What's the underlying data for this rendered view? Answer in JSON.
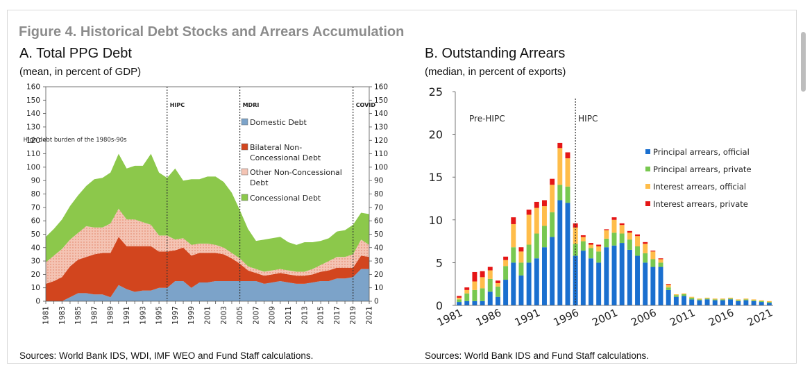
{
  "figure_title": "Figure 4. Historical Debt Stocks and Arrears Accumulation",
  "panel_a": {
    "title": "A. Total PPG Debt",
    "subtitle": "(mean, in percent of GDP)",
    "source": "Sources: World Bank IDS, WDI, IMF WEO and Fund Staff calculations."
  },
  "panel_b": {
    "title": "B. Outstanding Arrears",
    "subtitle": "(median, in percent of exports)",
    "source": "Sources: World Bank IDS and Fund Staff calculations."
  },
  "chart_data": [
    {
      "type": "area",
      "stacked": true,
      "title": "A. Total PPG Debt",
      "ylabel": "(mean, in percent of GDP)",
      "x": [
        1981,
        1982,
        1983,
        1984,
        1985,
        1986,
        1987,
        1988,
        1989,
        1990,
        1991,
        1992,
        1993,
        1994,
        1995,
        1996,
        1997,
        1998,
        1999,
        2000,
        2001,
        2002,
        2003,
        2004,
        2005,
        2006,
        2007,
        2008,
        2009,
        2010,
        2011,
        2012,
        2013,
        2014,
        2015,
        2016,
        2017,
        2018,
        2019,
        2020,
        2021
      ],
      "x_tick_labels": [
        "1981",
        "1983",
        "1985",
        "1987",
        "1989",
        "1991",
        "1993",
        "1995",
        "1997",
        "1999",
        "2001",
        "2003",
        "2005",
        "2007",
        "2009",
        "2011",
        "2013",
        "2015",
        "2017",
        "2019",
        "2021"
      ],
      "ylim": [
        0,
        160
      ],
      "y_ticks": [
        "0",
        "10",
        "20",
        "30",
        "40",
        "50",
        "60",
        "70",
        "80",
        "90",
        "100",
        "110",
        "120",
        "130",
        "140",
        "150",
        "160"
      ],
      "grid": false,
      "legend_position": "right",
      "series": [
        {
          "name": "Domestic Debt",
          "color": "#7ca3c9",
          "values": [
            0,
            0,
            0,
            3,
            6,
            6,
            5,
            5,
            3,
            12,
            9,
            7,
            8,
            8,
            10,
            10,
            15,
            15,
            10,
            14,
            14,
            15,
            15,
            15,
            15,
            15,
            15,
            13,
            14,
            15,
            14,
            13,
            13,
            14,
            15,
            15,
            17,
            17,
            18,
            24,
            24
          ]
        },
        {
          "name": "Bilateral Non-Concessional Debt",
          "color": "#d2451e",
          "values": [
            13,
            15,
            18,
            23,
            25,
            27,
            30,
            31,
            33,
            36,
            32,
            34,
            33,
            33,
            27,
            27,
            23,
            25,
            24,
            22,
            22,
            21,
            20,
            17,
            13,
            8,
            6,
            6,
            6,
            6,
            6,
            6,
            6,
            6,
            7,
            8,
            8,
            8,
            7,
            10,
            9
          ]
        },
        {
          "name": "Other Non-Concessional Debt",
          "color": "#f4c4b4",
          "values": [
            16,
            19,
            21,
            20,
            20,
            23,
            20,
            19,
            22,
            21,
            20,
            20,
            18,
            16,
            12,
            12,
            8,
            7,
            8,
            7,
            7,
            6,
            5,
            4,
            4,
            3,
            3,
            3,
            3,
            3,
            3,
            3,
            3,
            4,
            5,
            7,
            8,
            8,
            10,
            12,
            9
          ]
        },
        {
          "name": "Concessional Debt",
          "color": "#8cc84b",
          "values": [
            19,
            20,
            22,
            25,
            28,
            30,
            36,
            37,
            38,
            41,
            38,
            40,
            42,
            53,
            47,
            43,
            53,
            43,
            49,
            48,
            50,
            51,
            49,
            45,
            36,
            28,
            21,
            24,
            24,
            24,
            21,
            20,
            22,
            20,
            18,
            17,
            19,
            20,
            22,
            20,
            23
          ]
        }
      ],
      "annotations": [
        {
          "text": "High debt burden of the 1980s-90s",
          "x": 1986.8,
          "y": 119
        },
        {
          "text": "HIPC",
          "vline_x": 1996
        },
        {
          "text": "MDRI",
          "vline_x": 2005
        },
        {
          "text": "COVID",
          "vline_x": 2019
        }
      ]
    },
    {
      "type": "bar",
      "stacked": true,
      "title": "B. Outstanding Arrears",
      "ylabel": "(median, in percent of exports)",
      "categories": [
        1981,
        1982,
        1983,
        1984,
        1985,
        1986,
        1987,
        1988,
        1989,
        1990,
        1991,
        1992,
        1993,
        1994,
        1995,
        1996,
        1997,
        1998,
        1999,
        2000,
        2001,
        2002,
        2003,
        2004,
        2005,
        2006,
        2007,
        2008,
        2009,
        2010,
        2011,
        2012,
        2013,
        2014,
        2015,
        2016,
        2017,
        2018,
        2019,
        2020,
        2021
      ],
      "x_tick_labels": [
        "1981",
        "1986",
        "1991",
        "1996",
        "2001",
        "2006",
        "2011",
        "2016",
        "2021"
      ],
      "ylim": [
        0,
        25
      ],
      "y_ticks": [
        "0",
        "5",
        "10",
        "15",
        "20",
        "25"
      ],
      "grid": false,
      "legend_position": "right",
      "series": [
        {
          "name": "Principal arrears, official",
          "color": "#1a6fcf",
          "values": [
            0.4,
            0.5,
            0.5,
            0.5,
            1.6,
            1.0,
            3.0,
            5.0,
            3.5,
            5.0,
            5.5,
            6.8,
            8.0,
            12.3,
            12.0,
            5.8,
            6.4,
            5.5,
            5.0,
            6.8,
            7.0,
            7.3,
            6.5,
            5.8,
            5.0,
            4.5,
            4.5,
            1.8,
            1.0,
            1.1,
            0.7,
            0.6,
            0.7,
            0.6,
            0.6,
            0.7,
            0.5,
            0.6,
            0.5,
            0.4,
            0.3
          ]
        },
        {
          "name": "Principal arrears, private",
          "color": "#78c850",
          "values": [
            0.3,
            0.9,
            1.3,
            1.5,
            1.5,
            1.2,
            1.6,
            1.8,
            1.5,
            2.1,
            2.9,
            2.5,
            2.9,
            1.8,
            1.9,
            1.4,
            1.1,
            1.2,
            1.3,
            1.0,
            1.5,
            1.1,
            1.2,
            1.1,
            1.1,
            0.9,
            0.5,
            0.3,
            0.2,
            0.2,
            0.2,
            0.1,
            0.1,
            0.1,
            0.1,
            0.1,
            0.1,
            0.1,
            0.1,
            0.1,
            0.1
          ]
        },
        {
          "name": "Interest arrears, official",
          "color": "#ffbd4a",
          "values": [
            0.2,
            0.4,
            1.0,
            1.3,
            1.0,
            0.4,
            0.7,
            2.7,
            1.3,
            3.5,
            3.0,
            2.3,
            3.2,
            4.3,
            3.3,
            1.9,
            0.5,
            0.4,
            0.6,
            1.0,
            1.5,
            1.0,
            0.8,
            1.2,
            1.1,
            0.9,
            0.4,
            0.3,
            0.1,
            0.1,
            0.1,
            0.1,
            0.1,
            0.1,
            0.1,
            0.1,
            0.1,
            0.1,
            0.1,
            0.1,
            0.1
          ]
        },
        {
          "name": "Interest arrears, private",
          "color": "#e51616",
          "values": [
            0.2,
            0.3,
            1.1,
            0.7,
            0.4,
            0.3,
            0.4,
            0.8,
            0.5,
            0.6,
            0.7,
            0.7,
            0.7,
            0.6,
            0.7,
            0.5,
            0.2,
            0.2,
            0.2,
            0.1,
            0.3,
            0.2,
            0.2,
            0.2,
            0.2,
            0.1,
            0.1,
            0.1,
            0,
            0,
            0,
            0,
            0,
            0,
            0,
            0,
            0,
            0,
            0,
            0,
            0
          ]
        }
      ],
      "annotations": [
        {
          "text": "Pre-HIPC",
          "x": 1985.5,
          "y": 22
        },
        {
          "text": "HIPC",
          "vline_x": 1996
        }
      ]
    }
  ]
}
